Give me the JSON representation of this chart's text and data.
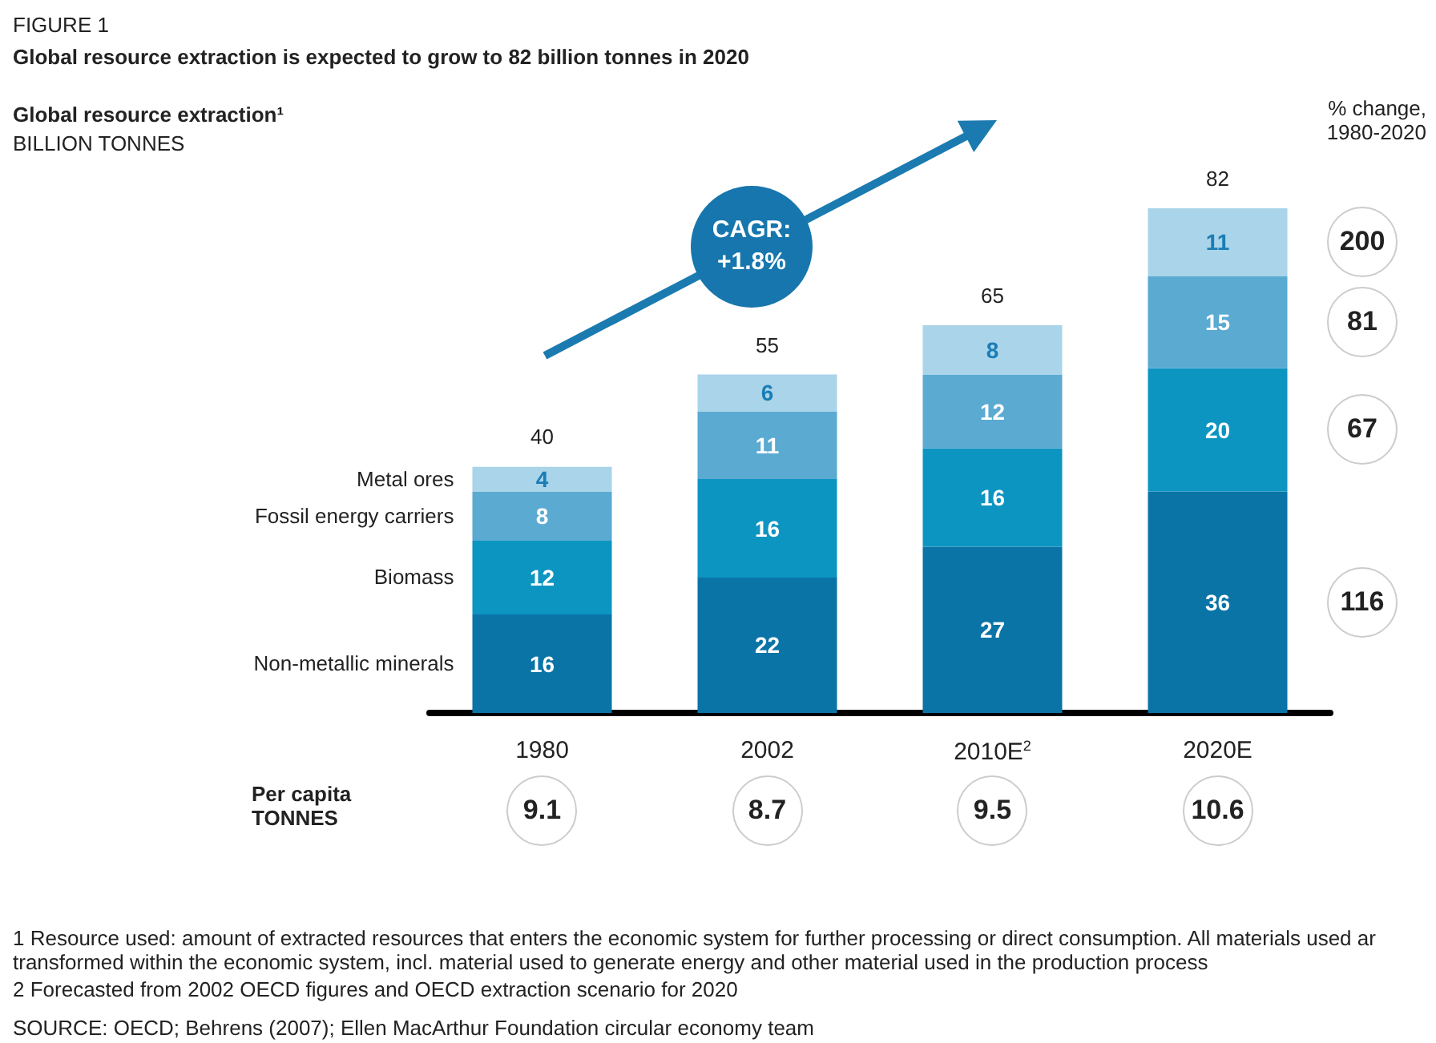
{
  "chart_data": {
    "type": "bar",
    "stacked": true,
    "title": "Global resource extraction is expected to grow to 82 billion tonnes in 2020",
    "categories": [
      "1980",
      "2002",
      "2010E$^{2}$",
      "2020E"
    ],
    "series": [
      {
        "name": "Non-metallic minerals",
        "color": "#0a74a6",
        "values": [
          16,
          22,
          27,
          36
        ]
      },
      {
        "name": "Biomass",
        "color": "#0d95c2",
        "values": [
          12,
          16,
          16,
          20
        ]
      },
      {
        "name": "Fossil energy carriers",
        "color": "#5aaad2",
        "values": [
          8,
          11,
          12,
          15
        ]
      },
      {
        "name": "Metal ores",
        "color": "#a9d4ea",
        "values": [
          4,
          6,
          8,
          11
        ]
      }
    ],
    "data_labels": true,
    "totals": [
      "40",
      "55",
      "65",
      "82"
    ],
    "legend": false,
    "annotations": [
      "FIGURE 1",
      "Global resource extraction¹",
      "BILLION TONNES",
      "% change,\n1980-2020",
      "Per capita\nTONNES",
      "CAGR:\n+1.8%",
      "1  Resource used: amount of extracted resources that enters the economic system for further processing or direct consumption. All materials used ar transformed within the economic system, incl. material used to generate energy and other material used in the production process",
      "2  Forecasted from 2002 OECD figures and OECD extraction scenario for 2020",
      "SOURCE: OECD; Behrens (2007); Ellen MacArthur Foundation circular economy team",
      "9.1",
      "8.7",
      "9.5",
      "10.6",
      "116",
      "67",
      "81",
      "200"
    ]
  }
}
